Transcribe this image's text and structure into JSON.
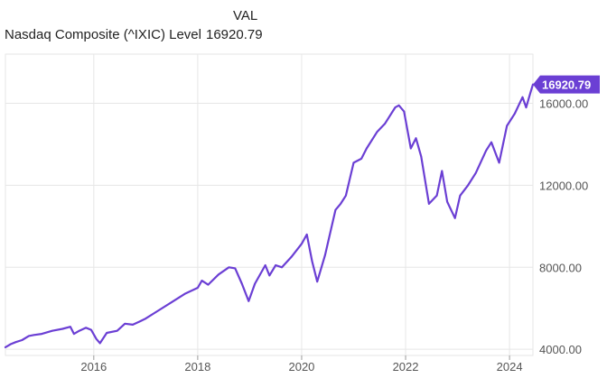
{
  "header": {
    "column_label": "VAL",
    "series_name": "Nasdaq Composite (^IXIC) Level",
    "series_value": "16920.79"
  },
  "chart_data": {
    "type": "line",
    "title": "",
    "xlabel": "",
    "ylabel": "",
    "xlim": [
      2014.3,
      2024.45
    ],
    "ylim": [
      3700,
      18400
    ],
    "x_ticks": [
      2016,
      2018,
      2020,
      2022,
      2024
    ],
    "x_tick_labels": [
      "2016",
      "2018",
      "2020",
      "2022",
      "2024"
    ],
    "y_ticks": [
      4000,
      8000,
      12000,
      16000
    ],
    "y_tick_labels": [
      "4000.00",
      "8000.00",
      "12000.00",
      "16000.00"
    ],
    "grid": true,
    "last_value_label": "16920.79",
    "colors": {
      "line": "#6b3fd4",
      "badge": "#6b3fd4",
      "grid": "#e6e6e6"
    },
    "series": [
      {
        "name": "Nasdaq Composite (^IXIC) Level",
        "x": [
          2014.3,
          2014.4,
          2014.5,
          2014.62,
          2014.75,
          2014.85,
          2015.0,
          2015.2,
          2015.4,
          2015.55,
          2015.62,
          2015.72,
          2015.85,
          2015.95,
          2016.05,
          2016.12,
          2016.25,
          2016.45,
          2016.6,
          2016.75,
          2016.88,
          2017.0,
          2017.25,
          2017.5,
          2017.75,
          2018.0,
          2018.08,
          2018.2,
          2018.4,
          2018.6,
          2018.72,
          2018.85,
          2018.98,
          2019.1,
          2019.3,
          2019.38,
          2019.5,
          2019.62,
          2019.8,
          2020.0,
          2020.1,
          2020.2,
          2020.3,
          2020.45,
          2020.65,
          2020.75,
          2020.85,
          2021.0,
          2021.15,
          2021.25,
          2021.45,
          2021.6,
          2021.8,
          2021.87,
          2021.97,
          2022.1,
          2022.2,
          2022.3,
          2022.45,
          2022.6,
          2022.7,
          2022.8,
          2022.95,
          2023.05,
          2023.2,
          2023.35,
          2023.55,
          2023.65,
          2023.8,
          2023.95,
          2024.1,
          2024.25,
          2024.32,
          2024.4,
          2024.45
        ],
        "values": [
          4100,
          4250,
          4350,
          4450,
          4650,
          4700,
          4750,
          4900,
          5000,
          5100,
          4750,
          4900,
          5050,
          4950,
          4500,
          4300,
          4800,
          4900,
          5250,
          5200,
          5350,
          5500,
          5900,
          6300,
          6700,
          7000,
          7350,
          7150,
          7650,
          8000,
          7950,
          7200,
          6350,
          7200,
          8100,
          7600,
          8100,
          8000,
          8500,
          9150,
          9600,
          8300,
          7300,
          8600,
          10800,
          11100,
          11500,
          13100,
          13300,
          13800,
          14600,
          15000,
          15800,
          15900,
          15600,
          13800,
          14300,
          13400,
          11100,
          11500,
          12700,
          11200,
          10400,
          11500,
          12000,
          12600,
          13700,
          14100,
          13100,
          14900,
          15500,
          16300,
          15800,
          16500,
          16920.79
        ]
      }
    ]
  }
}
